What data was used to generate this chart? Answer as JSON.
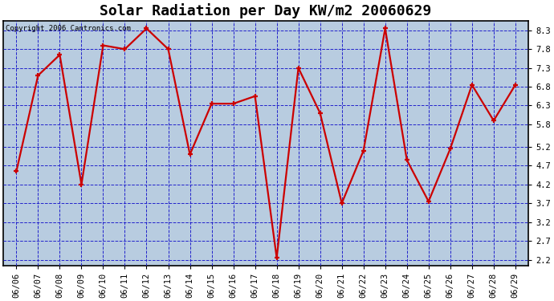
{
  "title": "Solar Radiation per Day KW/m2 20060629",
  "copyright": "Copyright 2006 Cantronics.com",
  "dates": [
    "06/06",
    "06/07",
    "06/08",
    "06/09",
    "06/10",
    "06/11",
    "06/12",
    "06/13",
    "06/14",
    "06/15",
    "06/16",
    "06/17",
    "06/18",
    "06/19",
    "06/20",
    "06/21",
    "06/22",
    "06/23",
    "06/24",
    "06/25",
    "06/26",
    "06/27",
    "06/28",
    "06/29"
  ],
  "values": [
    4.55,
    7.1,
    7.65,
    4.2,
    7.9,
    7.8,
    8.35,
    7.8,
    5.0,
    6.35,
    6.35,
    6.55,
    2.25,
    7.3,
    6.1,
    3.7,
    5.1,
    8.35,
    4.85,
    3.75,
    5.15,
    6.85,
    5.9,
    6.85
  ],
  "line_color": "#cc0000",
  "marker_color": "#cc0000",
  "outer_bg": "#ffffff",
  "plot_bg_color": "#b8cce0",
  "grid_color": "#2222cc",
  "title_fontsize": 13,
  "copyright_fontsize": 6.5,
  "tick_fontsize": 7.5,
  "ylim": [
    2.05,
    8.55
  ],
  "yticks": [
    2.2,
    2.7,
    3.2,
    3.7,
    4.2,
    4.7,
    5.2,
    5.8,
    6.3,
    6.8,
    7.3,
    7.8,
    8.3
  ],
  "marker_size": 5,
  "line_width": 1.6
}
